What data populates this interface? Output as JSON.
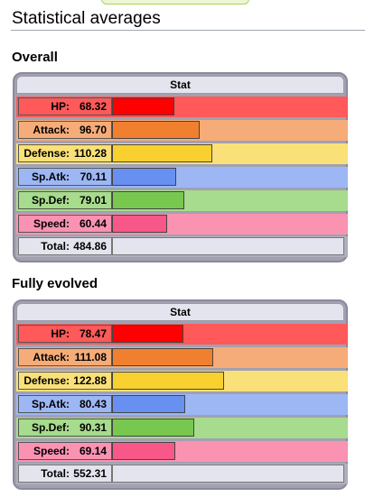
{
  "heading": "Statistical averages",
  "stat_header": "Stat",
  "stat_max": 255,
  "colors": {
    "hp": {
      "row": "#ff5959",
      "label": "#ff5959",
      "bar": "#ff0000"
    },
    "attack": {
      "row": "#f5ac78",
      "label": "#f5ac78",
      "bar": "#f08030"
    },
    "defense": {
      "row": "#fae078",
      "label": "#fae078",
      "bar": "#f8d030"
    },
    "spatk": {
      "row": "#9db7f5",
      "label": "#9db7f5",
      "bar": "#6890f0"
    },
    "spdef": {
      "row": "#a7db8d",
      "label": "#a7db8d",
      "bar": "#78c850"
    },
    "speed": {
      "row": "#fa92b2",
      "label": "#fa92b2",
      "bar": "#f85888"
    }
  },
  "sections": [
    {
      "title": "Overall",
      "stats": [
        {
          "key": "hp",
          "name": "HP:",
          "value": "68.32"
        },
        {
          "key": "attack",
          "name": "Attack:",
          "value": "96.70"
        },
        {
          "key": "defense",
          "name": "Defense:",
          "value": "110.28"
        },
        {
          "key": "spatk",
          "name": "Sp.Atk:",
          "value": "70.11"
        },
        {
          "key": "spdef",
          "name": "Sp.Def:",
          "value": "79.01"
        },
        {
          "key": "speed",
          "name": "Speed:",
          "value": "60.44"
        }
      ],
      "total": {
        "name": "Total:",
        "value": "484.86"
      }
    },
    {
      "title": "Fully evolved",
      "stats": [
        {
          "key": "hp",
          "name": "HP:",
          "value": "78.47"
        },
        {
          "key": "attack",
          "name": "Attack:",
          "value": "111.08"
        },
        {
          "key": "defense",
          "name": "Defense:",
          "value": "122.88"
        },
        {
          "key": "spatk",
          "name": "Sp.Atk:",
          "value": "80.43"
        },
        {
          "key": "spdef",
          "name": "Sp.Def:",
          "value": "90.31"
        },
        {
          "key": "speed",
          "name": "Speed:",
          "value": "69.14"
        }
      ],
      "total": {
        "name": "Total:",
        "value": "552.31"
      }
    }
  ]
}
